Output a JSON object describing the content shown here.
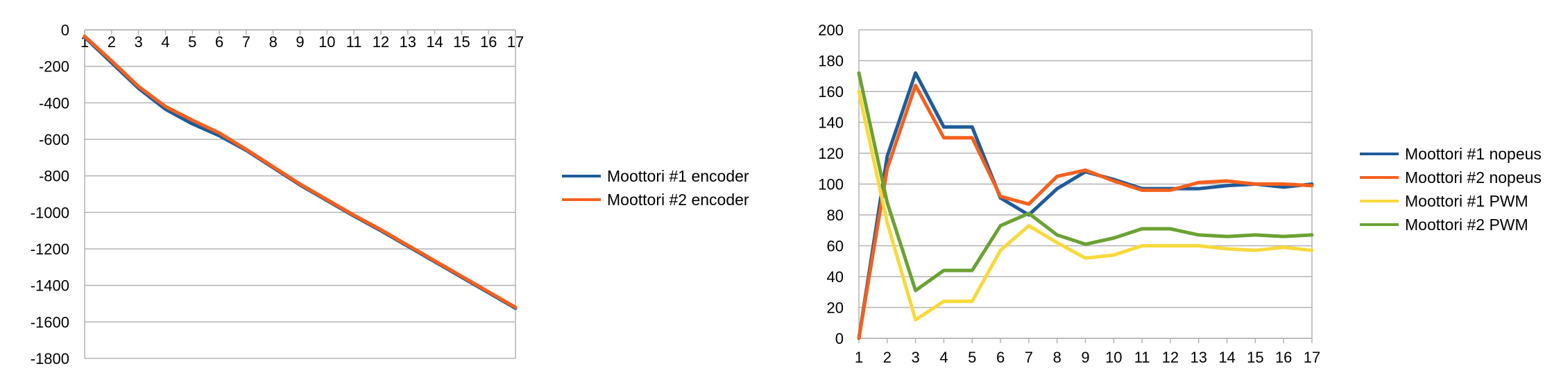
{
  "chart_data": [
    {
      "type": "line",
      "title": "",
      "xlabel": "",
      "ylabel": "",
      "x": [
        1,
        2,
        3,
        4,
        5,
        6,
        7,
        8,
        9,
        10,
        11,
        12,
        13,
        14,
        15,
        16,
        17
      ],
      "xlim": [
        1,
        17
      ],
      "ylim": [
        -1800,
        0
      ],
      "yticks": [
        0,
        -200,
        -400,
        -600,
        -800,
        -1000,
        -1200,
        -1400,
        -1600,
        -1800
      ],
      "grid": true,
      "legend_position": "right",
      "series": [
        {
          "name": "Moottori #1 encoder",
          "color": "#1f5b99",
          "values": [
            -40,
            -180,
            -320,
            -435,
            -515,
            -580,
            -660,
            -755,
            -850,
            -935,
            -1020,
            -1100,
            -1185,
            -1270,
            -1355,
            -1440,
            -1525
          ]
        },
        {
          "name": "Moottori #2 encoder",
          "color": "#f4601d",
          "values": [
            -35,
            -170,
            -310,
            -420,
            -495,
            -565,
            -655,
            -750,
            -845,
            -930,
            -1015,
            -1095,
            -1180,
            -1265,
            -1350,
            -1435,
            -1520
          ]
        }
      ]
    },
    {
      "type": "line",
      "title": "",
      "xlabel": "",
      "ylabel": "",
      "x": [
        1,
        2,
        3,
        4,
        5,
        6,
        7,
        8,
        9,
        10,
        11,
        12,
        13,
        14,
        15,
        16,
        17
      ],
      "xlim": [
        1,
        17
      ],
      "ylim": [
        0,
        200
      ],
      "yticks": [
        200,
        180,
        160,
        140,
        120,
        100,
        80,
        60,
        40,
        20,
        0
      ],
      "grid": true,
      "legend_position": "right",
      "series": [
        {
          "name": "Moottori #1 nopeus",
          "color": "#1f5b99",
          "values": [
            0,
            118,
            172,
            137,
            137,
            91,
            80,
            97,
            108,
            103,
            97,
            97,
            97,
            99,
            100,
            98,
            100
          ]
        },
        {
          "name": "Moottori #2 nopeus",
          "color": "#f4601d",
          "values": [
            0,
            110,
            164,
            130,
            130,
            92,
            87,
            105,
            109,
            102,
            96,
            96,
            101,
            102,
            100,
            100,
            99
          ]
        },
        {
          "name": "Moottori #1 PWM",
          "color": "#f8d93b",
          "values": [
            160,
            75,
            12,
            24,
            24,
            57,
            73,
            62,
            52,
            54,
            60,
            60,
            60,
            58,
            57,
            59,
            57
          ]
        },
        {
          "name": "Moottori #2 PWM",
          "color": "#6aa232",
          "values": [
            172,
            88,
            31,
            44,
            44,
            73,
            81,
            67,
            61,
            65,
            71,
            71,
            67,
            66,
            67,
            66,
            67
          ]
        }
      ]
    }
  ]
}
